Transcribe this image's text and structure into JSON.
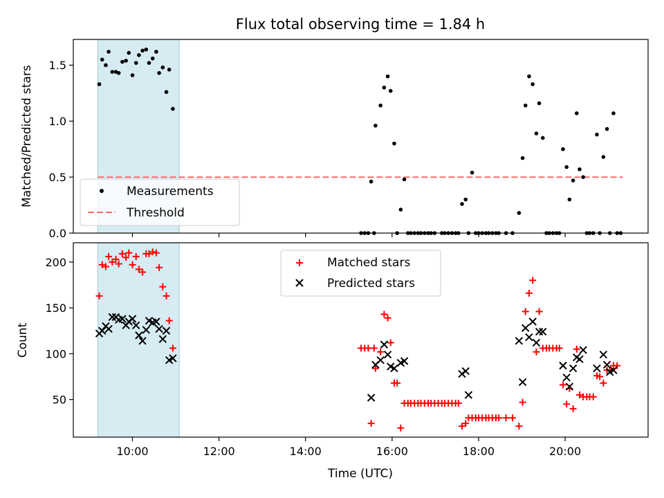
{
  "colors": {
    "highlight": "#add8e6",
    "threshold": "#ff6b6b",
    "matched": "#ff0000",
    "predicted": "#000000",
    "measurement": "#000000"
  },
  "chart_data": [
    {
      "type": "scatter",
      "title": "Flux total observing time = 1.84 h",
      "xlabel": "",
      "ylabel": "Matched/Predicted stars",
      "x_unit": "time UTC (HH:MM)",
      "xlim": [
        "08:38",
        "21:55"
      ],
      "ylim": [
        0,
        1.73
      ],
      "yticks": [
        "0.0",
        "0.5",
        "1.0",
        "1.5"
      ],
      "highlight_span": [
        "09:12",
        "11:05"
      ],
      "legend": {
        "placement": "lower-left",
        "entries": [
          "Measurements",
          "Threshold"
        ]
      },
      "threshold": {
        "name": "Threshold",
        "y": 0.5,
        "x_start": "09:12",
        "x_end": "21:20"
      },
      "series": [
        {
          "name": "Measurements",
          "points": [
            [
              "09:14",
              1.33
            ],
            [
              "09:18",
              1.55
            ],
            [
              "09:23",
              1.5
            ],
            [
              "09:27",
              1.62
            ],
            [
              "09:32",
              1.44
            ],
            [
              "09:37",
              1.44
            ],
            [
              "09:41",
              1.43
            ],
            [
              "09:46",
              1.53
            ],
            [
              "09:51",
              1.54
            ],
            [
              "09:55",
              1.61
            ],
            [
              "10:00",
              1.41
            ],
            [
              "10:05",
              1.52
            ],
            [
              "10:09",
              1.59
            ],
            [
              "10:14",
              1.63
            ],
            [
              "10:19",
              1.64
            ],
            [
              "10:23",
              1.52
            ],
            [
              "10:28",
              1.56
            ],
            [
              "10:33",
              1.62
            ],
            [
              "10:37",
              1.43
            ],
            [
              "10:42",
              1.48
            ],
            [
              "10:47",
              1.26
            ],
            [
              "10:51",
              1.46
            ],
            [
              "10:56",
              1.11
            ],
            [
              "15:17",
              0.0
            ],
            [
              "15:22",
              0.0
            ],
            [
              "15:27",
              0.0
            ],
            [
              "15:31",
              0.46
            ],
            [
              "15:35",
              0.0
            ],
            [
              "15:37",
              0.96
            ],
            [
              "15:44",
              1.14
            ],
            [
              "15:49",
              1.3
            ],
            [
              "15:54",
              1.4
            ],
            [
              "15:58",
              1.27
            ],
            [
              "16:03",
              0.8
            ],
            [
              "16:07",
              0.0
            ],
            [
              "16:12",
              0.21
            ],
            [
              "16:17",
              0.48
            ],
            [
              "16:22",
              0.0
            ],
            [
              "16:26",
              0.0
            ],
            [
              "16:31",
              0.0
            ],
            [
              "16:36",
              0.0
            ],
            [
              "16:40",
              0.0
            ],
            [
              "16:45",
              0.0
            ],
            [
              "16:50",
              0.0
            ],
            [
              "16:54",
              0.0
            ],
            [
              "16:59",
              0.0
            ],
            [
              "17:09",
              0.0
            ],
            [
              "17:13",
              0.0
            ],
            [
              "17:18",
              0.0
            ],
            [
              "17:23",
              0.0
            ],
            [
              "17:28",
              0.0
            ],
            [
              "17:32",
              0.0
            ],
            [
              "17:37",
              0.26
            ],
            [
              "17:42",
              0.3
            ],
            [
              "17:46",
              0.0
            ],
            [
              "17:51",
              0.54
            ],
            [
              "17:56",
              0.0
            ],
            [
              "18:00",
              0.0
            ],
            [
              "18:05",
              0.0
            ],
            [
              "18:10",
              0.0
            ],
            [
              "18:14",
              0.0
            ],
            [
              "18:19",
              0.0
            ],
            [
              "18:24",
              0.0
            ],
            [
              "18:28",
              0.0
            ],
            [
              "18:38",
              0.0
            ],
            [
              "18:47",
              0.0
            ],
            [
              "18:56",
              0.18
            ],
            [
              "19:01",
              0.67
            ],
            [
              "19:05",
              1.14
            ],
            [
              "19:10",
              1.4
            ],
            [
              "19:15",
              1.33
            ],
            [
              "19:20",
              0.89
            ],
            [
              "19:24",
              1.16
            ],
            [
              "19:29",
              0.85
            ],
            [
              "19:34",
              0.0
            ],
            [
              "19:38",
              0.0
            ],
            [
              "19:43",
              0.0
            ],
            [
              "19:48",
              0.0
            ],
            [
              "19:52",
              0.0
            ],
            [
              "19:57",
              0.75
            ],
            [
              "20:02",
              0.59
            ],
            [
              "20:06",
              0.3
            ],
            [
              "20:11",
              0.47
            ],
            [
              "20:16",
              1.07
            ],
            [
              "20:20",
              0.57
            ],
            [
              "20:25",
              0.5
            ],
            [
              "20:30",
              0.0
            ],
            [
              "20:34",
              0.0
            ],
            [
              "20:39",
              0.0
            ],
            [
              "20:44",
              0.88
            ],
            [
              "20:48",
              0.0
            ],
            [
              "20:53",
              0.68
            ],
            [
              "20:58",
              0.93
            ],
            [
              "21:02",
              0.0
            ],
            [
              "21:07",
              1.07
            ],
            [
              "21:12",
              0.0
            ],
            [
              "21:17",
              0.0
            ]
          ]
        }
      ]
    },
    {
      "type": "scatter",
      "title": "",
      "xlabel": "Time (UTC)",
      "ylabel": "Count",
      "xlim": [
        "08:38",
        "21:55"
      ],
      "ylim": [
        9,
        221
      ],
      "yticks": [
        "50",
        "100",
        "150",
        "200"
      ],
      "xticks": [
        "10:00",
        "12:00",
        "14:00",
        "16:00",
        "18:00",
        "20:00"
      ],
      "highlight_span": [
        "09:12",
        "11:05"
      ],
      "legend": {
        "placement": "upper-center",
        "entries": [
          "Matched stars",
          "Predicted stars"
        ]
      },
      "series": [
        {
          "name": "Matched stars",
          "points": [
            [
              "09:14",
              163
            ],
            [
              "09:18",
              197
            ],
            [
              "09:23",
              195
            ],
            [
              "09:27",
              206
            ],
            [
              "09:32",
              200
            ],
            [
              "09:37",
              203
            ],
            [
              "09:41",
              198
            ],
            [
              "09:46",
              209
            ],
            [
              "09:51",
              205
            ],
            [
              "09:55",
              210
            ],
            [
              "10:00",
              197
            ],
            [
              "10:05",
              206
            ],
            [
              "10:09",
              192
            ],
            [
              "10:14",
              189
            ],
            [
              "10:19",
              209
            ],
            [
              "10:23",
              209
            ],
            [
              "10:28",
              211
            ],
            [
              "10:33",
              210
            ],
            [
              "10:37",
              194
            ],
            [
              "10:42",
              173
            ],
            [
              "10:47",
              163
            ],
            [
              "10:51",
              136
            ],
            [
              "10:56",
              106
            ],
            [
              "15:17",
              106
            ],
            [
              "15:22",
              106
            ],
            [
              "15:27",
              106
            ],
            [
              "15:31",
              24
            ],
            [
              "15:35",
              106
            ],
            [
              "15:37",
              84
            ],
            [
              "15:44",
              102
            ],
            [
              "15:49",
              143
            ],
            [
              "15:54",
              139
            ],
            [
              "15:58",
              112
            ],
            [
              "16:03",
              68
            ],
            [
              "16:07",
              68
            ],
            [
              "16:12",
              19
            ],
            [
              "16:17",
              46
            ],
            [
              "16:22",
              46
            ],
            [
              "16:26",
              46
            ],
            [
              "16:31",
              46
            ],
            [
              "16:36",
              46
            ],
            [
              "16:40",
              46
            ],
            [
              "16:45",
              46
            ],
            [
              "16:50",
              46
            ],
            [
              "16:54",
              46
            ],
            [
              "16:59",
              46
            ],
            [
              "17:04",
              46
            ],
            [
              "17:09",
              46
            ],
            [
              "17:13",
              46
            ],
            [
              "17:18",
              46
            ],
            [
              "17:23",
              46
            ],
            [
              "17:28",
              46
            ],
            [
              "17:32",
              46
            ],
            [
              "17:37",
              21
            ],
            [
              "17:42",
              24
            ],
            [
              "17:46",
              30
            ],
            [
              "17:51",
              30
            ],
            [
              "17:56",
              30
            ],
            [
              "18:00",
              30
            ],
            [
              "18:05",
              30
            ],
            [
              "18:10",
              30
            ],
            [
              "18:14",
              30
            ],
            [
              "18:19",
              30
            ],
            [
              "18:24",
              30
            ],
            [
              "18:28",
              30
            ],
            [
              "18:38",
              30
            ],
            [
              "18:47",
              30
            ],
            [
              "18:56",
              21
            ],
            [
              "19:01",
              47
            ],
            [
              "19:05",
              146
            ],
            [
              "19:10",
              166
            ],
            [
              "19:15",
              180
            ],
            [
              "19:20",
              102
            ],
            [
              "19:24",
              146
            ],
            [
              "19:29",
              106
            ],
            [
              "19:34",
              106
            ],
            [
              "19:38",
              106
            ],
            [
              "19:43",
              106
            ],
            [
              "19:48",
              106
            ],
            [
              "19:52",
              106
            ],
            [
              "19:57",
              66
            ],
            [
              "20:02",
              45
            ],
            [
              "20:06",
              62
            ],
            [
              "20:11",
              40
            ],
            [
              "20:16",
              105
            ],
            [
              "20:20",
              55
            ],
            [
              "20:25",
              53
            ],
            [
              "20:30",
              53
            ],
            [
              "20:34",
              53
            ],
            [
              "20:39",
              53
            ],
            [
              "20:44",
              76
            ],
            [
              "20:48",
              75
            ],
            [
              "20:53",
              68
            ],
            [
              "20:58",
              82
            ],
            [
              "21:02",
              82
            ],
            [
              "21:07",
              87
            ],
            [
              "21:12",
              87
            ]
          ]
        },
        {
          "name": "Predicted stars",
          "points": [
            [
              "09:14",
              122
            ],
            [
              "09:18",
              125
            ],
            [
              "09:23",
              130
            ],
            [
              "09:27",
              127
            ],
            [
              "09:32",
              140
            ],
            [
              "09:37",
              140
            ],
            [
              "09:41",
              137
            ],
            [
              "09:46",
              138
            ],
            [
              "09:51",
              131
            ],
            [
              "09:55",
              135
            ],
            [
              "10:00",
              138
            ],
            [
              "10:05",
              131
            ],
            [
              "10:09",
              120
            ],
            [
              "10:14",
              114
            ],
            [
              "10:19",
              126
            ],
            [
              "10:23",
              136
            ],
            [
              "10:28",
              134
            ],
            [
              "10:33",
              135
            ],
            [
              "10:37",
              127
            ],
            [
              "10:42",
              116
            ],
            [
              "10:47",
              125
            ],
            [
              "10:51",
              93
            ],
            [
              "10:56",
              95
            ],
            [
              "15:31",
              52
            ],
            [
              "15:37",
              88
            ],
            [
              "15:44",
              93
            ],
            [
              "15:49",
              110
            ],
            [
              "15:54",
              99
            ],
            [
              "15:58",
              86
            ],
            [
              "16:03",
              84
            ],
            [
              "16:12",
              90
            ],
            [
              "16:17",
              92
            ],
            [
              "17:37",
              78
            ],
            [
              "17:42",
              81
            ],
            [
              "17:46",
              55
            ],
            [
              "18:56",
              114
            ],
            [
              "19:01",
              69
            ],
            [
              "19:05",
              128
            ],
            [
              "19:10",
              118
            ],
            [
              "19:15",
              135
            ],
            [
              "19:20",
              112
            ],
            [
              "19:24",
              124
            ],
            [
              "19:29",
              124
            ],
            [
              "19:57",
              87
            ],
            [
              "20:02",
              74
            ],
            [
              "20:06",
              64
            ],
            [
              "20:11",
              84
            ],
            [
              "20:16",
              96
            ],
            [
              "20:20",
              94
            ],
            [
              "20:25",
              104
            ],
            [
              "20:44",
              84
            ],
            [
              "20:53",
              99
            ],
            [
              "20:58",
              88
            ],
            [
              "21:02",
              80
            ],
            [
              "21:07",
              82
            ]
          ]
        }
      ]
    }
  ]
}
